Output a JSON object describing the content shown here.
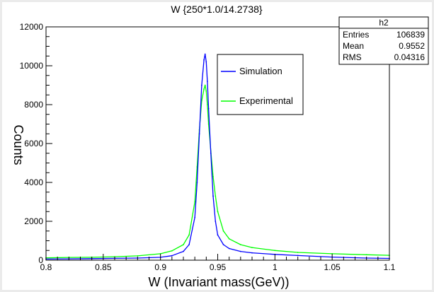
{
  "chart_data": {
    "type": "line",
    "title": "W {250*1.0/14.2738}",
    "xlabel": "W (Invariant mass(GeV))",
    "ylabel": "Counts",
    "xlim": [
      0.8,
      1.1
    ],
    "ylim": [
      0,
      12000
    ],
    "xticks": [
      0.8,
      0.85,
      0.9,
      0.95,
      1.0,
      1.05,
      1.1
    ],
    "xtick_labels": [
      "0.8",
      "0.85",
      "0.9",
      "0.95",
      "1",
      "1.05",
      "1.1"
    ],
    "yticks": [
      0,
      2000,
      4000,
      6000,
      8000,
      10000,
      12000
    ],
    "ytick_labels": [
      "0",
      "2000",
      "4000",
      "6000",
      "8000",
      "10000",
      "12000"
    ],
    "grid": false,
    "legend_position": "upper-right-of-peak",
    "series": [
      {
        "name": "Simulation",
        "color": "#0000ff",
        "x": [
          0.8,
          0.82,
          0.84,
          0.86,
          0.88,
          0.9,
          0.91,
          0.92,
          0.925,
          0.93,
          0.932,
          0.934,
          0.936,
          0.938,
          0.939,
          0.94,
          0.941,
          0.942,
          0.944,
          0.946,
          0.948,
          0.95,
          0.955,
          0.96,
          0.97,
          0.98,
          1.0,
          1.02,
          1.05,
          1.08,
          1.1
        ],
        "y": [
          60,
          70,
          80,
          95,
          110,
          150,
          230,
          450,
          800,
          2200,
          4000,
          6500,
          9000,
          10300,
          10600,
          10200,
          9200,
          7800,
          5500,
          3300,
          2000,
          1300,
          800,
          600,
          450,
          380,
          300,
          240,
          160,
          110,
          90
        ]
      },
      {
        "name": "Experimental",
        "color": "#00ff00",
        "x": [
          0.8,
          0.82,
          0.84,
          0.86,
          0.88,
          0.9,
          0.91,
          0.92,
          0.925,
          0.93,
          0.932,
          0.934,
          0.936,
          0.938,
          0.939,
          0.94,
          0.941,
          0.942,
          0.944,
          0.946,
          0.948,
          0.95,
          0.955,
          0.96,
          0.97,
          0.98,
          1.0,
          1.02,
          1.05,
          1.08,
          1.1
        ],
        "y": [
          120,
          140,
          150,
          180,
          220,
          330,
          480,
          800,
          1300,
          3000,
          4800,
          6700,
          8200,
          8800,
          9000,
          8700,
          8000,
          7000,
          5600,
          4300,
          3300,
          2500,
          1500,
          1100,
          800,
          650,
          500,
          400,
          330,
          280,
          250
        ]
      }
    ]
  },
  "stats_box": {
    "name": "h2",
    "rows": [
      {
        "label": "Entries",
        "value": "106839"
      },
      {
        "label": "Mean",
        "value": "0.9552"
      },
      {
        "label": "RMS",
        "value": "0.04316"
      }
    ]
  }
}
